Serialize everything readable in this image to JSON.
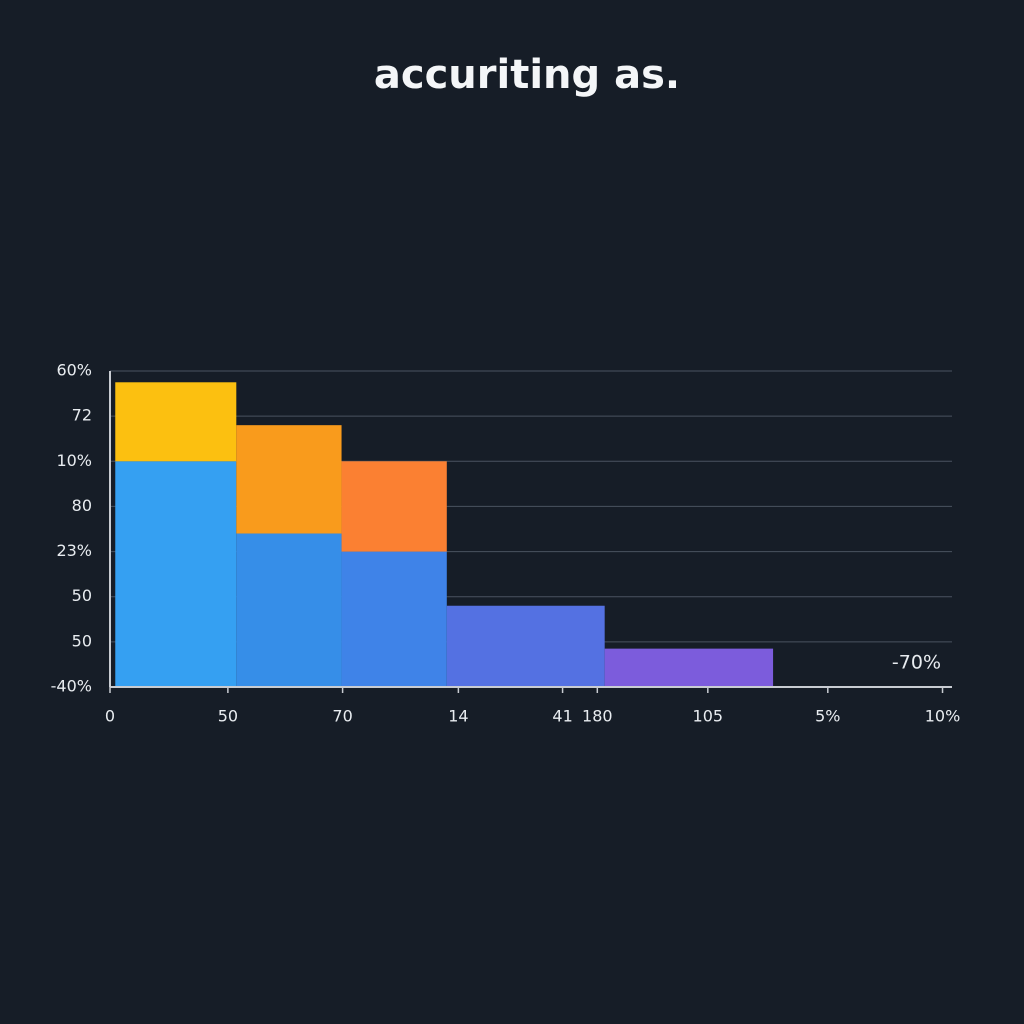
{
  "chart_data": {
    "type": "histogram",
    "title": "accuriting as.",
    "annotation": "-70%",
    "bins": [
      0.05,
      1.2,
      2.2,
      3.2,
      4.7,
      6.3
    ],
    "series": [
      {
        "colors": [
          "#35a0f2",
          "#368ee8",
          "#3f83e8",
          "#5471e2",
          "#7c5cdc"
        ],
        "values": [
          5,
          3.4,
          3,
          1.8,
          0.85
        ]
      },
      {
        "colors": [
          "#fcc010",
          "#f99b1c",
          "#fb8032",
          null,
          null
        ],
        "values": [
          1.75,
          2.4,
          2,
          null,
          null
        ]
      }
    ],
    "xlim": [
      0,
      8
    ],
    "xticks": [
      {
        "value": 0,
        "label": "0"
      },
      {
        "value": 1.12,
        "label": "50"
      },
      {
        "value": 2.21,
        "label": "70"
      },
      {
        "value": 3.31,
        "label": "14"
      },
      {
        "value": 4.3,
        "label": "41"
      },
      {
        "value": 4.63,
        "label": "180"
      },
      {
        "value": 5.68,
        "label": "105"
      },
      {
        "value": 6.82,
        "label": "5%"
      },
      {
        "value": 7.91,
        "label": "10%"
      }
    ],
    "ylim": [
      0,
      7
    ],
    "yticks": [
      {
        "value": 0,
        "label": "-40%"
      },
      {
        "value": 1,
        "label": "50"
      },
      {
        "value": 2,
        "label": "50"
      },
      {
        "value": 3,
        "label": "23%"
      },
      {
        "value": 4,
        "label": "80"
      },
      {
        "value": 5,
        "label": "10%"
      },
      {
        "value": 6,
        "label": "72"
      },
      {
        "value": 7,
        "label": "60%"
      }
    ],
    "grid": true
  }
}
